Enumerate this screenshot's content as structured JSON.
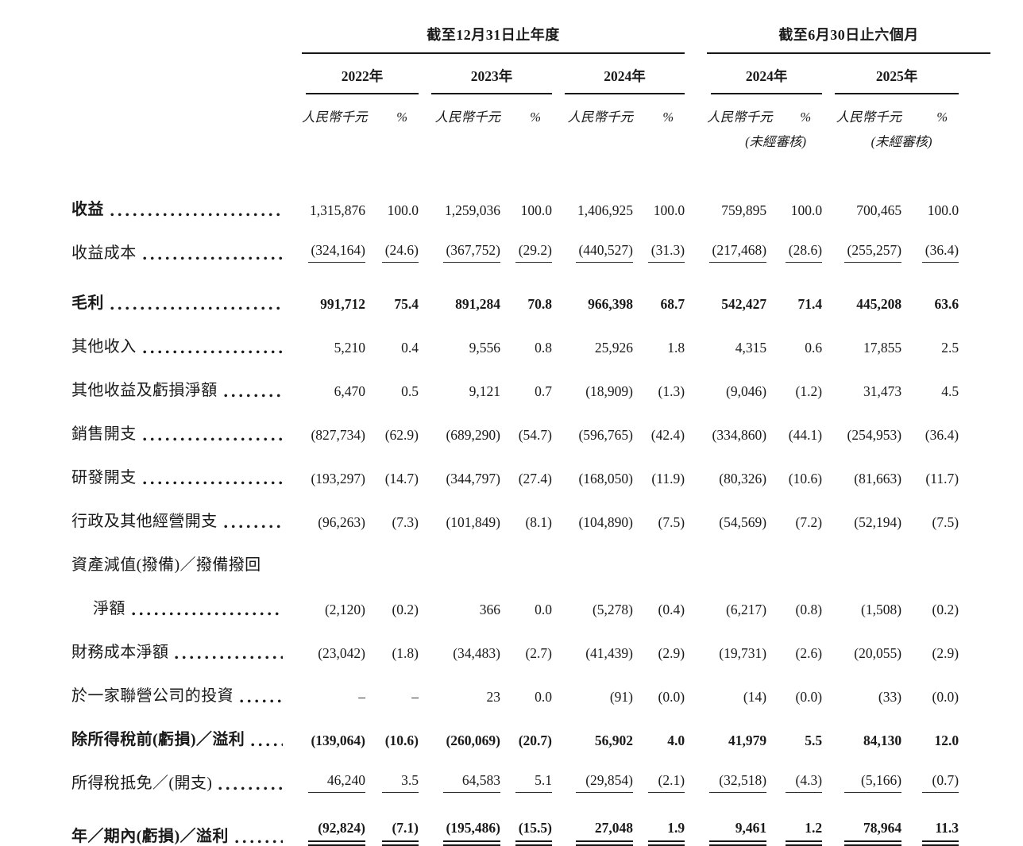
{
  "table": {
    "col_groups": [
      {
        "title": "截至12月31日止年度",
        "years": [
          "2022年",
          "2023年",
          "2024年"
        ]
      },
      {
        "title": "截至6月30日止六個月",
        "years": [
          "2024年",
          "2025年"
        ]
      }
    ],
    "unit_label": "人民幣千元",
    "pct_label": "%",
    "unaudited_label": "(未經審核)",
    "rows": [
      {
        "label": "收益",
        "bold_label": true,
        "leader": true,
        "values": [
          "1,315,876",
          "100.0",
          "1,259,036",
          "100.0",
          "1,406,925",
          "100.0",
          "759,895",
          "100.0",
          "700,465",
          "100.0"
        ]
      },
      {
        "label": "收益成本",
        "leader": true,
        "rule": "single",
        "values": [
          "(324,164)",
          "(24.6)",
          "(367,752)",
          "(29.2)",
          "(440,527)",
          "(31.3)",
          "(217,468)",
          "(28.6)",
          "(255,257)",
          "(36.4)"
        ]
      },
      {
        "label": "毛利",
        "bold_label": true,
        "bold_values": true,
        "leader": true,
        "gap_before": true,
        "values": [
          "991,712",
          "75.4",
          "891,284",
          "70.8",
          "966,398",
          "68.7",
          "542,427",
          "71.4",
          "445,208",
          "63.6"
        ]
      },
      {
        "label": "其他收入",
        "leader": true,
        "values": [
          "5,210",
          "0.4",
          "9,556",
          "0.8",
          "25,926",
          "1.8",
          "4,315",
          "0.6",
          "17,855",
          "2.5"
        ]
      },
      {
        "label": "其他收益及虧損淨額",
        "leader": true,
        "values": [
          "6,470",
          "0.5",
          "9,121",
          "0.7",
          "(18,909)",
          "(1.3)",
          "(9,046)",
          "(1.2)",
          "31,473",
          "4.5"
        ]
      },
      {
        "label": "銷售開支",
        "leader": true,
        "values": [
          "(827,734)",
          "(62.9)",
          "(689,290)",
          "(54.7)",
          "(596,765)",
          "(42.4)",
          "(334,860)",
          "(44.1)",
          "(254,953)",
          "(36.4)"
        ]
      },
      {
        "label": "研發開支",
        "leader": true,
        "values": [
          "(193,297)",
          "(14.7)",
          "(344,797)",
          "(27.4)",
          "(168,050)",
          "(11.9)",
          "(80,326)",
          "(10.6)",
          "(81,663)",
          "(11.7)"
        ]
      },
      {
        "label": "行政及其他經營開支",
        "leader": true,
        "values": [
          "(96,263)",
          "(7.3)",
          "(101,849)",
          "(8.1)",
          "(104,890)",
          "(7.5)",
          "(54,569)",
          "(7.2)",
          "(52,194)",
          "(7.5)"
        ]
      },
      {
        "label": "資產減值(撥備)／撥備撥回",
        "values": [
          "",
          "",
          "",
          "",
          "",
          "",
          "",
          "",
          "",
          ""
        ]
      },
      {
        "label": "淨額",
        "leader": true,
        "indent": true,
        "values": [
          "(2,120)",
          "(0.2)",
          "366",
          "0.0",
          "(5,278)",
          "(0.4)",
          "(6,217)",
          "(0.8)",
          "(1,508)",
          "(0.2)"
        ]
      },
      {
        "label": "財務成本淨額",
        "leader": true,
        "values": [
          "(23,042)",
          "(1.8)",
          "(34,483)",
          "(2.7)",
          "(41,439)",
          "(2.9)",
          "(19,731)",
          "(2.6)",
          "(20,055)",
          "(2.9)"
        ]
      },
      {
        "label": "於一家聯營公司的投資",
        "leader": true,
        "values": [
          "–",
          "–",
          "23",
          "0.0",
          "(91)",
          "(0.0)",
          "(14)",
          "(0.0)",
          "(33)",
          "(0.0)"
        ]
      },
      {
        "label": "除所得稅前(虧損)／溢利",
        "bold_label": true,
        "bold_values": true,
        "leader": true,
        "values": [
          "(139,064)",
          "(10.6)",
          "(260,069)",
          "(20.7)",
          "56,902",
          "4.0",
          "41,979",
          "5.5",
          "84,130",
          "12.0"
        ]
      },
      {
        "label": "所得稅抵免／(開支)",
        "leader": true,
        "rule": "single",
        "values": [
          "46,240",
          "3.5",
          "64,583",
          "5.1",
          "(29,854)",
          "(2.1)",
          "(32,518)",
          "(4.3)",
          "(5,166)",
          "(0.7)"
        ]
      },
      {
        "label": "年／期內(虧損)／溢利",
        "bold_label": true,
        "bold_values": true,
        "leader": true,
        "gap_before": true,
        "rule": "double",
        "values": [
          "(92,824)",
          "(7.1)",
          "(195,486)",
          "(15.5)",
          "27,048",
          "1.9",
          "9,461",
          "1.2",
          "78,964",
          "11.3"
        ]
      }
    ]
  }
}
